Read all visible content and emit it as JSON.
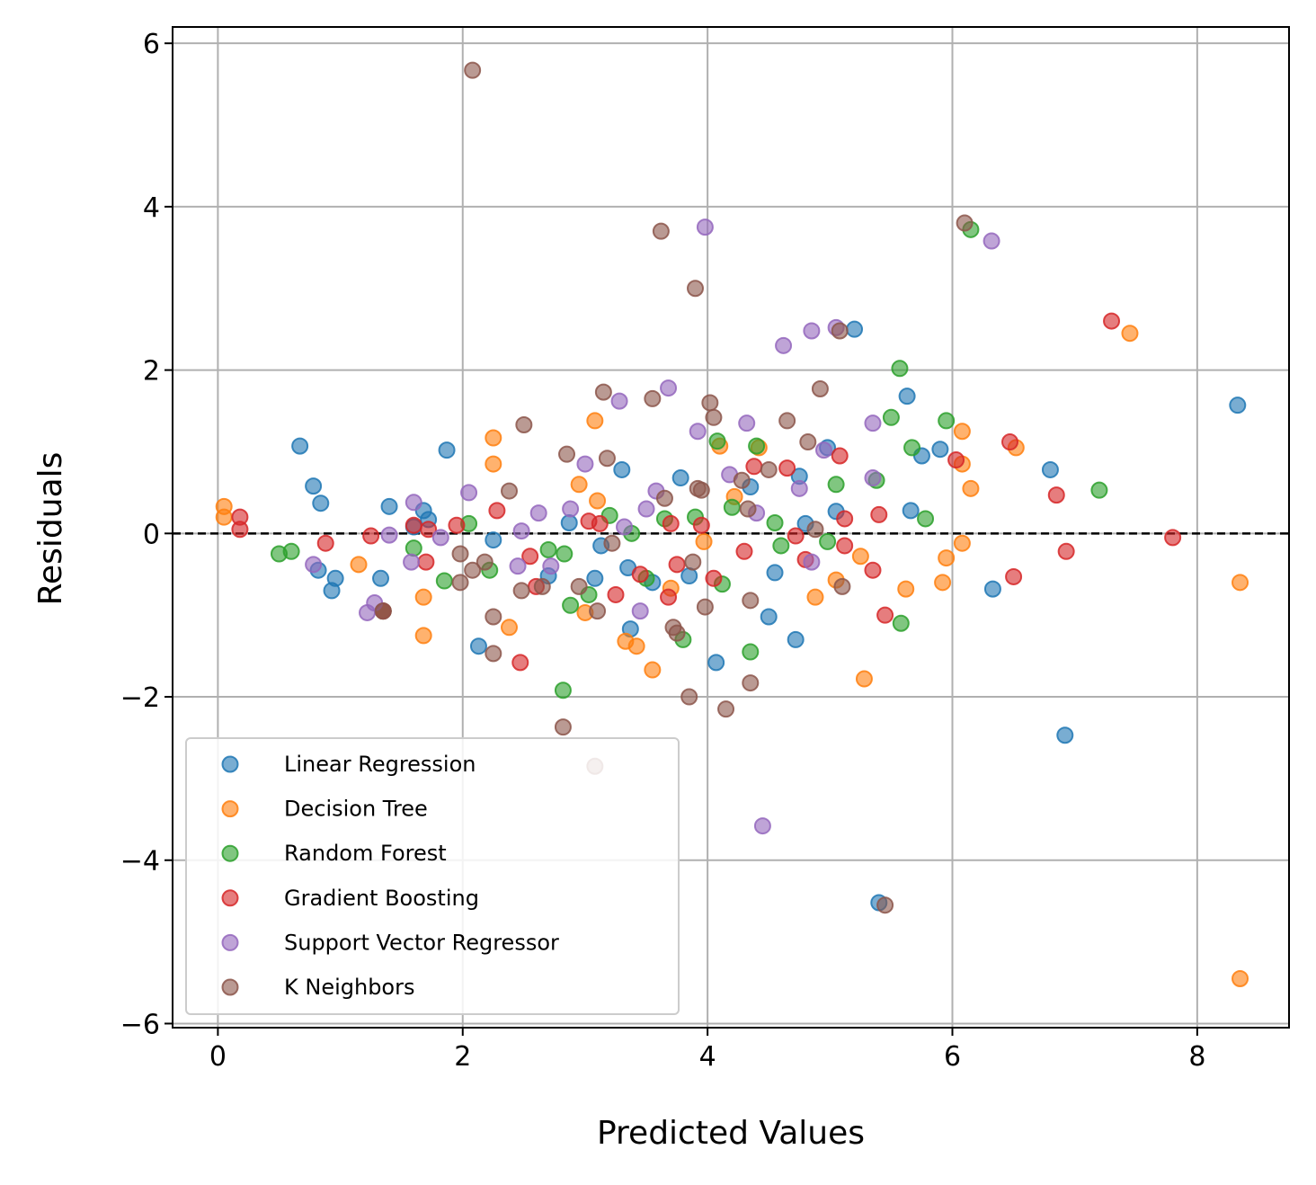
{
  "chart_data": {
    "type": "scatter",
    "title": "",
    "xlabel": "Predicted Values",
    "ylabel": "Residuals",
    "xlim": [
      -0.37,
      8.75
    ],
    "ylim": [
      -6.05,
      6.2
    ],
    "xticks": [
      0,
      2,
      4,
      6,
      8
    ],
    "yticks": [
      -6,
      -4,
      -2,
      0,
      2,
      4,
      6
    ],
    "xtick_labels": [
      "0",
      "2",
      "4",
      "6",
      "8"
    ],
    "ytick_labels": [
      "−6",
      "−4",
      "−2",
      "0",
      "2",
      "4",
      "6"
    ],
    "grid": true,
    "reference_line": {
      "y": 0,
      "style": "dashed",
      "color": "#000000"
    },
    "legend": {
      "placement": "lower-left"
    },
    "series": [
      {
        "name": "Linear Regression",
        "color": "#1f77b4",
        "points": [
          [
            0.67,
            1.07
          ],
          [
            0.78,
            0.58
          ],
          [
            0.82,
            -0.45
          ],
          [
            0.84,
            0.37
          ],
          [
            0.93,
            -0.7
          ],
          [
            0.96,
            -0.55
          ],
          [
            1.33,
            -0.55
          ],
          [
            1.35,
            -0.95
          ],
          [
            1.4,
            0.33
          ],
          [
            1.6,
            0.08
          ],
          [
            1.68,
            0.28
          ],
          [
            1.72,
            0.17
          ],
          [
            1.87,
            1.02
          ],
          [
            2.13,
            -1.38
          ],
          [
            2.25,
            -0.08
          ],
          [
            2.7,
            -0.52
          ],
          [
            2.87,
            0.13
          ],
          [
            3.08,
            -0.55
          ],
          [
            3.13,
            -0.15
          ],
          [
            3.3,
            0.78
          ],
          [
            3.35,
            -0.42
          ],
          [
            3.37,
            -1.17
          ],
          [
            3.55,
            -0.6
          ],
          [
            3.78,
            0.68
          ],
          [
            3.85,
            -0.52
          ],
          [
            4.07,
            -1.58
          ],
          [
            4.35,
            0.57
          ],
          [
            4.5,
            -1.02
          ],
          [
            4.55,
            -0.48
          ],
          [
            4.72,
            -1.3
          ],
          [
            4.75,
            0.7
          ],
          [
            4.8,
            0.12
          ],
          [
            4.98,
            1.05
          ],
          [
            5.05,
            0.27
          ],
          [
            5.2,
            2.5
          ],
          [
            5.4,
            -4.52
          ],
          [
            5.63,
            1.68
          ],
          [
            5.66,
            0.28
          ],
          [
            5.75,
            0.95
          ],
          [
            5.9,
            1.03
          ],
          [
            6.33,
            -0.68
          ],
          [
            6.8,
            0.78
          ],
          [
            6.92,
            -2.47
          ],
          [
            8.33,
            1.57
          ]
        ]
      },
      {
        "name": "Decision Tree",
        "color": "#ff7f0e",
        "points": [
          [
            0.05,
            0.33
          ],
          [
            0.05,
            0.2
          ],
          [
            1.15,
            -0.38
          ],
          [
            1.68,
            -0.78
          ],
          [
            1.68,
            -1.25
          ],
          [
            2.25,
            1.17
          ],
          [
            2.25,
            0.85
          ],
          [
            2.38,
            -1.15
          ],
          [
            2.95,
            0.6
          ],
          [
            3.0,
            -0.97
          ],
          [
            3.08,
            1.38
          ],
          [
            3.1,
            0.4
          ],
          [
            3.33,
            -1.32
          ],
          [
            3.42,
            -1.38
          ],
          [
            3.55,
            -1.67
          ],
          [
            3.7,
            -0.67
          ],
          [
            3.97,
            -0.1
          ],
          [
            4.1,
            1.07
          ],
          [
            4.22,
            0.45
          ],
          [
            4.42,
            1.05
          ],
          [
            4.88,
            -0.78
          ],
          [
            5.05,
            -0.57
          ],
          [
            5.25,
            -0.28
          ],
          [
            5.28,
            -1.78
          ],
          [
            5.62,
            -0.68
          ],
          [
            5.92,
            -0.6
          ],
          [
            5.95,
            -0.3
          ],
          [
            6.08,
            1.25
          ],
          [
            6.08,
            0.85
          ],
          [
            6.08,
            -0.12
          ],
          [
            6.15,
            0.55
          ],
          [
            6.52,
            1.05
          ],
          [
            7.45,
            2.45
          ],
          [
            8.35,
            -0.6
          ],
          [
            8.35,
            -5.45
          ]
        ]
      },
      {
        "name": "Random Forest",
        "color": "#2ca02c",
        "points": [
          [
            0.5,
            -0.25
          ],
          [
            0.6,
            -0.22
          ],
          [
            1.35,
            -0.95
          ],
          [
            1.6,
            -0.18
          ],
          [
            1.85,
            -0.58
          ],
          [
            2.05,
            0.12
          ],
          [
            2.22,
            -0.45
          ],
          [
            2.7,
            -0.2
          ],
          [
            2.83,
            -0.25
          ],
          [
            2.82,
            -1.92
          ],
          [
            2.88,
            -0.88
          ],
          [
            3.03,
            -0.75
          ],
          [
            3.2,
            0.22
          ],
          [
            3.38,
            0.0
          ],
          [
            3.5,
            -0.55
          ],
          [
            3.65,
            0.18
          ],
          [
            3.8,
            -1.3
          ],
          [
            3.9,
            0.2
          ],
          [
            4.08,
            1.13
          ],
          [
            4.12,
            -0.62
          ],
          [
            4.2,
            0.32
          ],
          [
            4.35,
            -1.45
          ],
          [
            4.4,
            1.07
          ],
          [
            4.55,
            0.13
          ],
          [
            4.6,
            -0.15
          ],
          [
            4.98,
            -0.1
          ],
          [
            5.05,
            0.6
          ],
          [
            5.38,
            0.65
          ],
          [
            5.5,
            1.42
          ],
          [
            5.57,
            2.02
          ],
          [
            5.58,
            -1.1
          ],
          [
            5.67,
            1.05
          ],
          [
            5.78,
            0.18
          ],
          [
            5.95,
            1.38
          ],
          [
            6.15,
            3.72
          ],
          [
            7.2,
            0.53
          ]
        ]
      },
      {
        "name": "Gradient Boosting",
        "color": "#d62728",
        "points": [
          [
            0.18,
            0.2
          ],
          [
            0.18,
            0.05
          ],
          [
            0.88,
            -0.12
          ],
          [
            1.25,
            -0.03
          ],
          [
            1.35,
            -0.95
          ],
          [
            1.6,
            0.1
          ],
          [
            1.7,
            -0.35
          ],
          [
            1.72,
            0.05
          ],
          [
            1.95,
            0.1
          ],
          [
            2.28,
            0.28
          ],
          [
            2.47,
            -1.58
          ],
          [
            2.55,
            -0.28
          ],
          [
            2.6,
            -0.65
          ],
          [
            3.03,
            0.15
          ],
          [
            3.12,
            0.12
          ],
          [
            3.25,
            -0.75
          ],
          [
            3.45,
            -0.5
          ],
          [
            3.68,
            -0.78
          ],
          [
            3.7,
            0.12
          ],
          [
            3.75,
            -0.38
          ],
          [
            3.95,
            0.1
          ],
          [
            4.05,
            -0.55
          ],
          [
            4.3,
            -0.22
          ],
          [
            4.38,
            0.82
          ],
          [
            4.65,
            0.8
          ],
          [
            4.72,
            -0.03
          ],
          [
            4.8,
            -0.32
          ],
          [
            5.08,
            0.95
          ],
          [
            5.12,
            -0.15
          ],
          [
            5.12,
            0.18
          ],
          [
            5.35,
            -0.45
          ],
          [
            5.4,
            0.23
          ],
          [
            5.45,
            -1.0
          ],
          [
            6.03,
            0.9
          ],
          [
            6.47,
            1.12
          ],
          [
            6.5,
            -0.53
          ],
          [
            6.85,
            0.47
          ],
          [
            6.93,
            -0.22
          ],
          [
            7.3,
            2.6
          ],
          [
            7.8,
            -0.05
          ]
        ]
      },
      {
        "name": "Support Vector Regressor",
        "color": "#9467bd",
        "points": [
          [
            0.78,
            -0.38
          ],
          [
            1.22,
            -0.97
          ],
          [
            1.28,
            -0.85
          ],
          [
            1.4,
            -0.02
          ],
          [
            1.58,
            -0.35
          ],
          [
            1.6,
            0.38
          ],
          [
            1.82,
            -0.05
          ],
          [
            2.05,
            0.5
          ],
          [
            2.45,
            -0.4
          ],
          [
            2.48,
            0.03
          ],
          [
            2.62,
            0.25
          ],
          [
            2.72,
            -0.4
          ],
          [
            2.88,
            0.3
          ],
          [
            3.0,
            0.85
          ],
          [
            3.28,
            1.62
          ],
          [
            3.32,
            0.08
          ],
          [
            3.45,
            -0.95
          ],
          [
            3.5,
            0.3
          ],
          [
            3.58,
            0.52
          ],
          [
            3.68,
            1.78
          ],
          [
            3.92,
            1.25
          ],
          [
            3.98,
            3.75
          ],
          [
            4.18,
            0.72
          ],
          [
            4.32,
            1.35
          ],
          [
            4.4,
            0.25
          ],
          [
            4.45,
            -3.58
          ],
          [
            4.62,
            2.3
          ],
          [
            4.75,
            0.55
          ],
          [
            4.85,
            -0.35
          ],
          [
            4.85,
            2.48
          ],
          [
            4.95,
            1.02
          ],
          [
            5.05,
            2.52
          ],
          [
            5.35,
            1.35
          ],
          [
            5.35,
            0.68
          ],
          [
            6.32,
            3.58
          ]
        ]
      },
      {
        "name": "K Neighbors",
        "color": "#8c564b",
        "points": [
          [
            1.35,
            -0.95
          ],
          [
            1.98,
            -0.25
          ],
          [
            1.98,
            -0.6
          ],
          [
            2.08,
            -0.45
          ],
          [
            2.08,
            5.67
          ],
          [
            2.18,
            -0.35
          ],
          [
            2.25,
            -1.02
          ],
          [
            2.25,
            -1.47
          ],
          [
            2.38,
            0.52
          ],
          [
            2.48,
            -0.7
          ],
          [
            2.5,
            1.33
          ],
          [
            2.65,
            -0.65
          ],
          [
            2.82,
            -2.37
          ],
          [
            2.85,
            0.97
          ],
          [
            2.95,
            -0.65
          ],
          [
            3.08,
            -2.85
          ],
          [
            3.1,
            -0.95
          ],
          [
            3.15,
            1.73
          ],
          [
            3.18,
            0.92
          ],
          [
            3.22,
            -0.12
          ],
          [
            3.55,
            1.65
          ],
          [
            3.62,
            3.7
          ],
          [
            3.65,
            0.43
          ],
          [
            3.72,
            -1.15
          ],
          [
            3.75,
            -1.22
          ],
          [
            3.85,
            -2.0
          ],
          [
            3.88,
            -0.35
          ],
          [
            3.9,
            3.0
          ],
          [
            3.92,
            0.55
          ],
          [
            3.95,
            0.53
          ],
          [
            3.98,
            -0.9
          ],
          [
            4.02,
            1.6
          ],
          [
            4.05,
            1.42
          ],
          [
            4.15,
            -2.15
          ],
          [
            4.28,
            0.65
          ],
          [
            4.33,
            0.3
          ],
          [
            4.35,
            -1.83
          ],
          [
            4.35,
            -0.82
          ],
          [
            4.5,
            0.78
          ],
          [
            4.65,
            1.38
          ],
          [
            4.82,
            1.12
          ],
          [
            4.88,
            0.05
          ],
          [
            4.92,
            1.77
          ],
          [
            5.08,
            2.48
          ],
          [
            5.1,
            -0.65
          ],
          [
            5.45,
            -4.55
          ],
          [
            6.1,
            3.8
          ]
        ]
      }
    ]
  }
}
